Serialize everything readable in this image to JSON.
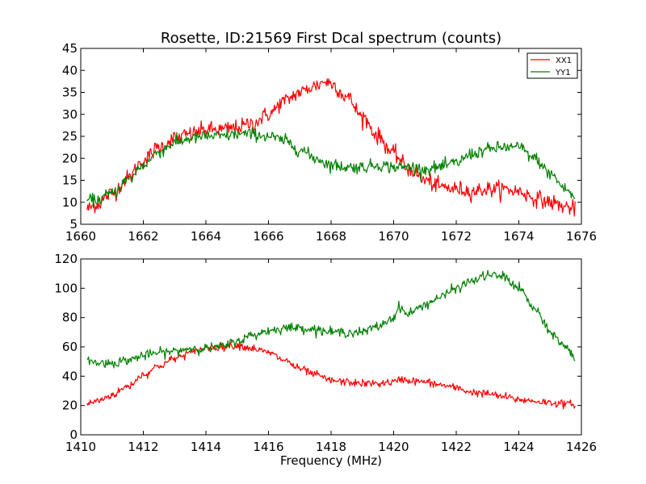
{
  "figure": {
    "title": "Rosette, ID:21569 First Dcal spectrum (counts)",
    "xlabel": "Frequency (MHz)"
  },
  "colors": {
    "XX1": "#ff0000",
    "YY1": "#008000",
    "axes": "#000000",
    "background": "#ffffff"
  },
  "chart_data": [
    {
      "type": "line",
      "title": "Rosette, ID:21569 First Dcal spectrum (counts)",
      "xlabel": "",
      "ylabel": "",
      "xlim": [
        1660,
        1676
      ],
      "ylim": [
        5,
        45
      ],
      "xticks": [
        1660,
        1662,
        1664,
        1666,
        1668,
        1670,
        1672,
        1674,
        1676
      ],
      "yticks": [
        5,
        10,
        15,
        20,
        25,
        30,
        35,
        40,
        45
      ],
      "grid": false,
      "legend_position": "top-right",
      "legend": [
        "XX1",
        "YY1"
      ],
      "series": [
        {
          "name": "XX1",
          "color": "#ff0000",
          "noise": 0.9,
          "x": [
            1660.2,
            1660.5,
            1661.0,
            1661.5,
            1662.0,
            1662.5,
            1663.0,
            1663.5,
            1664.0,
            1664.5,
            1665.0,
            1665.5,
            1666.0,
            1666.5,
            1667.0,
            1667.5,
            1667.8,
            1668.0,
            1668.5,
            1669.0,
            1669.5,
            1670.0,
            1670.5,
            1671.0,
            1671.5,
            1672.0,
            1672.5,
            1673.0,
            1673.5,
            1674.0,
            1674.5,
            1675.0,
            1675.5,
            1675.8
          ],
          "y": [
            8.5,
            9.5,
            12.0,
            15.5,
            19.5,
            22.5,
            24.5,
            25.5,
            26.5,
            26.5,
            27.0,
            28.0,
            30.0,
            33.0,
            35.0,
            36.5,
            37.5,
            37.0,
            34.0,
            29.5,
            25.0,
            21.0,
            17.5,
            15.0,
            13.5,
            13.0,
            12.5,
            13.0,
            13.0,
            12.5,
            11.0,
            10.0,
            9.0,
            8.5
          ]
        },
        {
          "name": "YY1",
          "color": "#008000",
          "noise": 0.7,
          "x": [
            1660.2,
            1660.5,
            1661.0,
            1661.5,
            1662.0,
            1662.5,
            1663.0,
            1663.5,
            1664.0,
            1664.5,
            1665.0,
            1665.5,
            1666.0,
            1666.5,
            1667.0,
            1667.5,
            1668.0,
            1668.5,
            1669.0,
            1669.5,
            1670.0,
            1670.5,
            1671.0,
            1671.5,
            1672.0,
            1672.5,
            1673.0,
            1673.5,
            1674.0,
            1674.5,
            1675.0,
            1675.5,
            1675.8
          ],
          "y": [
            10.5,
            10.5,
            12.0,
            15.0,
            18.5,
            21.5,
            23.5,
            24.5,
            25.0,
            25.0,
            25.5,
            25.5,
            25.0,
            24.0,
            22.0,
            20.0,
            18.5,
            18.0,
            18.0,
            18.5,
            18.0,
            18.0,
            17.5,
            18.0,
            19.0,
            21.0,
            22.0,
            22.5,
            22.5,
            20.0,
            16.5,
            13.0,
            11.0
          ]
        }
      ]
    },
    {
      "type": "line",
      "title": "",
      "xlabel": "Frequency (MHz)",
      "ylabel": "",
      "xlim": [
        1410,
        1426
      ],
      "ylim": [
        0,
        120
      ],
      "xticks": [
        1410,
        1412,
        1414,
        1416,
        1418,
        1420,
        1422,
        1424,
        1426
      ],
      "yticks": [
        0,
        20,
        40,
        60,
        80,
        100,
        120
      ],
      "grid": false,
      "series": [
        {
          "name": "XX1",
          "color": "#ff0000",
          "noise": 1.3,
          "x": [
            1410.2,
            1410.5,
            1411.0,
            1411.5,
            1412.0,
            1412.5,
            1413.0,
            1413.5,
            1414.0,
            1414.5,
            1415.0,
            1415.5,
            1416.0,
            1416.5,
            1417.0,
            1417.5,
            1418.0,
            1418.5,
            1419.0,
            1419.5,
            1420.0,
            1420.3,
            1420.5,
            1421.0,
            1421.5,
            1422.0,
            1422.5,
            1423.0,
            1423.5,
            1424.0,
            1424.5,
            1425.0,
            1425.5,
            1425.8
          ],
          "y": [
            21,
            23,
            27,
            33,
            41,
            47,
            52,
            56,
            59,
            60,
            61,
            59,
            56,
            51,
            45,
            41,
            37,
            36,
            35,
            35,
            36,
            38,
            37,
            36,
            34,
            32,
            29,
            28,
            26,
            24,
            23,
            22,
            21,
            21
          ]
        },
        {
          "name": "YY1",
          "color": "#008000",
          "noise": 1.6,
          "x": [
            1410.2,
            1410.5,
            1411.0,
            1411.5,
            1412.0,
            1412.5,
            1413.0,
            1413.5,
            1414.0,
            1414.5,
            1415.0,
            1415.5,
            1416.0,
            1416.5,
            1417.0,
            1417.5,
            1418.0,
            1418.5,
            1419.0,
            1419.5,
            1420.0,
            1420.2,
            1420.4,
            1420.6,
            1421.0,
            1421.5,
            1422.0,
            1422.5,
            1423.0,
            1423.5,
            1424.0,
            1424.5,
            1425.0,
            1425.5,
            1425.8
          ],
          "y": [
            51,
            49,
            49,
            51,
            54,
            56,
            57,
            59,
            59,
            60,
            64,
            68,
            71,
            73,
            73,
            72,
            70,
            70,
            70,
            74,
            80,
            88,
            82,
            84,
            89,
            94,
            100,
            105,
            109,
            108,
            100,
            86,
            70,
            60,
            52
          ]
        }
      ]
    }
  ]
}
